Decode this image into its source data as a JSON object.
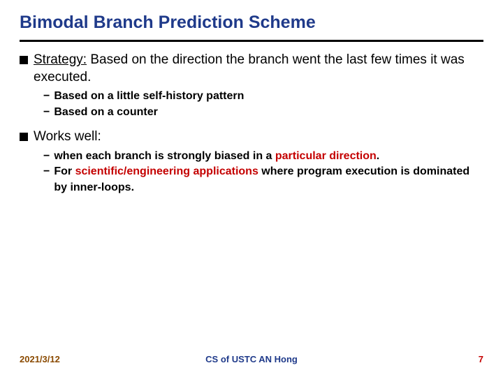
{
  "title": "Bimodal Branch Prediction Scheme",
  "colors": {
    "title": "#1f3a8a",
    "rule": "#000000",
    "highlight": "#c40000",
    "date": "#8a4a00",
    "center": "#1f3a8a",
    "page": "#c40000",
    "background": "#ffffff"
  },
  "typography": {
    "title_fontsize": 25,
    "l1_fontsize": 19,
    "l2_fontsize": 16,
    "footer_fontsize": 13,
    "font_family": "Arial"
  },
  "bullets": [
    {
      "lead": "Strategy:",
      "rest": " Based on the direction the branch went the last few times it was executed.",
      "sub": [
        {
          "plain": "Based on a little self-history pattern"
        },
        {
          "plain": "Based on a counter"
        }
      ]
    },
    {
      "lead": "",
      "rest": "Works well:",
      "sub": [
        {
          "pre": "when each branch is strongly biased in a ",
          "hl": "particular direction",
          "post": "."
        },
        {
          "pre": "For ",
          "hl": "scientific/engineering applications",
          "post": " where program execution is dominated by inner-loops."
        }
      ]
    }
  ],
  "footer": {
    "date": "2021/3/12",
    "center": "CS of USTC AN Hong",
    "page": "7"
  }
}
